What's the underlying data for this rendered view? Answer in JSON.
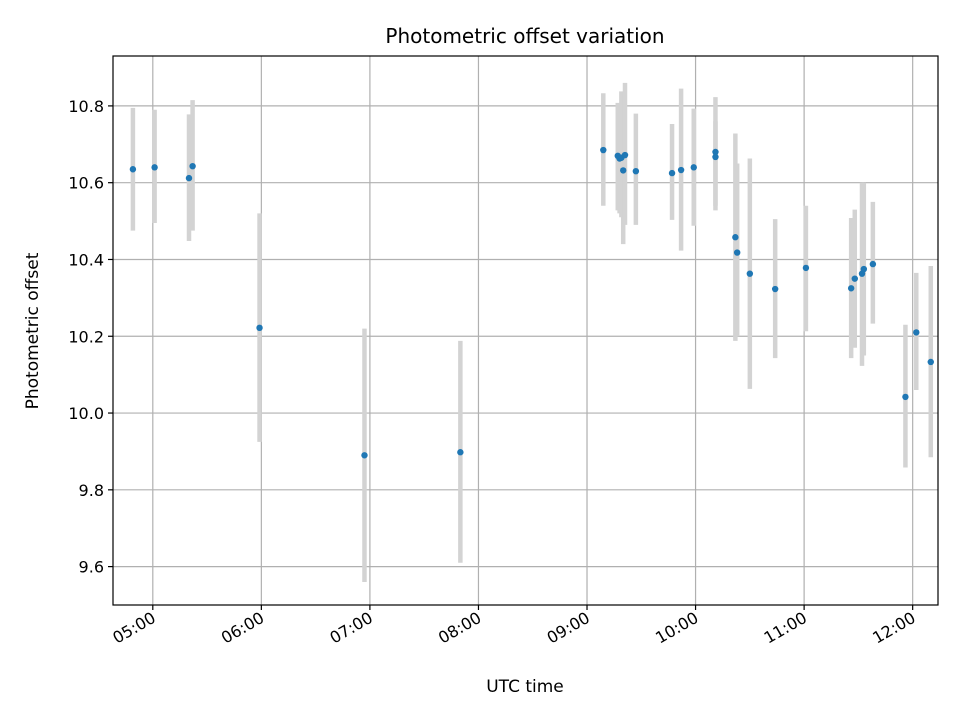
{
  "chart_data": {
    "type": "scatter",
    "title": "Photometric offset variation",
    "xlabel": "UTC time",
    "ylabel": "Photometric offset",
    "xlim": [
      "04:38",
      "12:14"
    ],
    "ylim": [
      9.5,
      10.93
    ],
    "xticks": [
      "05:00",
      "06:00",
      "07:00",
      "08:00",
      "09:00",
      "10:00",
      "11:00",
      "12:00"
    ],
    "yticks": [
      9.6,
      9.8,
      10.0,
      10.2,
      10.4,
      10.6,
      10.8
    ],
    "grid": true,
    "error_bar_color": "#d3d3d3",
    "point_color": "#1f77b4",
    "points": [
      {
        "x": "04:49",
        "y": 10.635,
        "ylow": 10.475,
        "yhigh": 10.795
      },
      {
        "x": "05:01",
        "y": 10.64,
        "ylow": 10.495,
        "yhigh": 10.79
      },
      {
        "x": "05:20",
        "y": 10.612,
        "ylow": 10.448,
        "yhigh": 10.778
      },
      {
        "x": "05:22",
        "y": 10.643,
        "ylow": 10.475,
        "yhigh": 10.815
      },
      {
        "x": "05:59",
        "y": 10.222,
        "ylow": 9.925,
        "yhigh": 10.52
      },
      {
        "x": "06:57",
        "y": 9.89,
        "ylow": 9.56,
        "yhigh": 10.22
      },
      {
        "x": "07:50",
        "y": 9.898,
        "ylow": 9.61,
        "yhigh": 10.188
      },
      {
        "x": "09:09",
        "y": 10.685,
        "ylow": 10.54,
        "yhigh": 10.833
      },
      {
        "x": "09:17",
        "y": 10.67,
        "ylow": 10.528,
        "yhigh": 10.808
      },
      {
        "x": "09:18",
        "y": 10.663,
        "ylow": 10.52,
        "yhigh": 10.8
      },
      {
        "x": "09:19",
        "y": 10.665,
        "ylow": 10.51,
        "yhigh": 10.838
      },
      {
        "x": "09:20",
        "y": 10.632,
        "ylow": 10.44,
        "yhigh": 10.82
      },
      {
        "x": "09:21",
        "y": 10.672,
        "ylow": 10.49,
        "yhigh": 10.86
      },
      {
        "x": "09:27",
        "y": 10.63,
        "ylow": 10.49,
        "yhigh": 10.78
      },
      {
        "x": "09:47",
        "y": 10.625,
        "ylow": 10.503,
        "yhigh": 10.753
      },
      {
        "x": "09:52",
        "y": 10.633,
        "ylow": 10.423,
        "yhigh": 10.845
      },
      {
        "x": "09:59",
        "y": 10.64,
        "ylow": 10.488,
        "yhigh": 10.793
      },
      {
        "x": "10:11",
        "y": 10.68,
        "ylow": 10.528,
        "yhigh": 10.823
      },
      {
        "x": "10:11",
        "y": 10.667,
        "ylow": 10.54,
        "yhigh": 10.76
      },
      {
        "x": "10:22",
        "y": 10.458,
        "ylow": 10.188,
        "yhigh": 10.728
      },
      {
        "x": "10:23",
        "y": 10.418,
        "ylow": 10.2,
        "yhigh": 10.65
      },
      {
        "x": "10:30",
        "y": 10.363,
        "ylow": 10.063,
        "yhigh": 10.663
      },
      {
        "x": "10:44",
        "y": 10.323,
        "ylow": 10.143,
        "yhigh": 10.505
      },
      {
        "x": "11:01",
        "y": 10.378,
        "ylow": 10.213,
        "yhigh": 10.54
      },
      {
        "x": "11:26",
        "y": 10.325,
        "ylow": 10.143,
        "yhigh": 10.508
      },
      {
        "x": "11:28",
        "y": 10.35,
        "ylow": 10.17,
        "yhigh": 10.53
      },
      {
        "x": "11:32",
        "y": 10.363,
        "ylow": 10.123,
        "yhigh": 10.6
      },
      {
        "x": "11:33",
        "y": 10.375,
        "ylow": 10.15,
        "yhigh": 10.6
      },
      {
        "x": "11:38",
        "y": 10.388,
        "ylow": 10.233,
        "yhigh": 10.55
      },
      {
        "x": "11:56",
        "y": 10.042,
        "ylow": 9.858,
        "yhigh": 10.23
      },
      {
        "x": "12:02",
        "y": 10.21,
        "ylow": 10.06,
        "yhigh": 10.365
      },
      {
        "x": "12:10",
        "y": 10.133,
        "ylow": 9.885,
        "yhigh": 10.383
      }
    ]
  }
}
